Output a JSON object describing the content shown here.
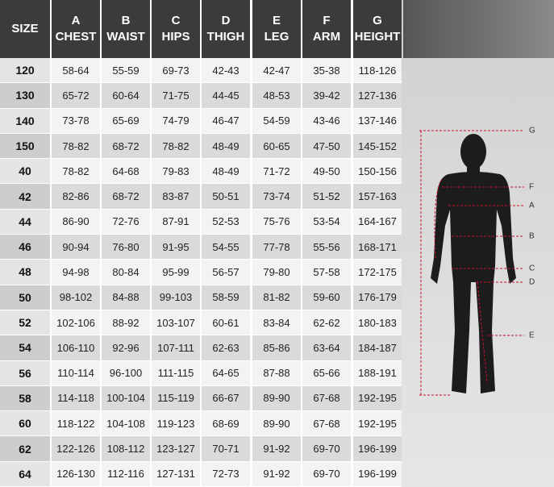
{
  "table": {
    "header": {
      "size": "SIZE",
      "columns": [
        {
          "letter": "A",
          "label": "CHEST"
        },
        {
          "letter": "B",
          "label": "WAIST"
        },
        {
          "letter": "C",
          "label": "HIPS"
        },
        {
          "letter": "D",
          "label": "THIGH"
        },
        {
          "letter": "E",
          "label": "LEG"
        },
        {
          "letter": "F",
          "label": "ARM"
        },
        {
          "letter": "G",
          "label": "HEIGHT"
        }
      ]
    },
    "rows": [
      [
        "120",
        "58-64",
        "55-59",
        "69-73",
        "42-43",
        "42-47",
        "35-38",
        "118-126"
      ],
      [
        "130",
        "65-72",
        "60-64",
        "71-75",
        "44-45",
        "48-53",
        "39-42",
        "127-136"
      ],
      [
        "140",
        "73-78",
        "65-69",
        "74-79",
        "46-47",
        "54-59",
        "43-46",
        "137-146"
      ],
      [
        "150",
        "78-82",
        "68-72",
        "78-82",
        "48-49",
        "60-65",
        "47-50",
        "145-152"
      ],
      [
        "40",
        "78-82",
        "64-68",
        "79-83",
        "48-49",
        "71-72",
        "49-50",
        "150-156"
      ],
      [
        "42",
        "82-86",
        "68-72",
        "83-87",
        "50-51",
        "73-74",
        "51-52",
        "157-163"
      ],
      [
        "44",
        "86-90",
        "72-76",
        "87-91",
        "52-53",
        "75-76",
        "53-54",
        "164-167"
      ],
      [
        "46",
        "90-94",
        "76-80",
        "91-95",
        "54-55",
        "77-78",
        "55-56",
        "168-171"
      ],
      [
        "48",
        "94-98",
        "80-84",
        "95-99",
        "56-57",
        "79-80",
        "57-58",
        "172-175"
      ],
      [
        "50",
        "98-102",
        "84-88",
        "99-103",
        "58-59",
        "81-82",
        "59-60",
        "176-179"
      ],
      [
        "52",
        "102-106",
        "88-92",
        "103-107",
        "60-61",
        "83-84",
        "62-62",
        "180-183"
      ],
      [
        "54",
        "106-110",
        "92-96",
        "107-111",
        "62-63",
        "85-86",
        "63-64",
        "184-187"
      ],
      [
        "56",
        "110-114",
        "96-100",
        "111-115",
        "64-65",
        "87-88",
        "65-66",
        "188-191"
      ],
      [
        "58",
        "114-118",
        "100-104",
        "115-119",
        "66-67",
        "89-90",
        "67-68",
        "192-195"
      ],
      [
        "60",
        "118-122",
        "104-108",
        "119-123",
        "68-69",
        "89-90",
        "67-68",
        "192-195"
      ],
      [
        "62",
        "122-126",
        "108-112",
        "123-127",
        "70-71",
        "91-92",
        "69-70",
        "196-199"
      ],
      [
        "64",
        "126-130",
        "112-116",
        "127-131",
        "72-73",
        "91-92",
        "69-70",
        "196-199"
      ]
    ]
  },
  "diagram": {
    "labels": [
      "G",
      "F",
      "A",
      "B",
      "C",
      "D",
      "E"
    ]
  }
}
